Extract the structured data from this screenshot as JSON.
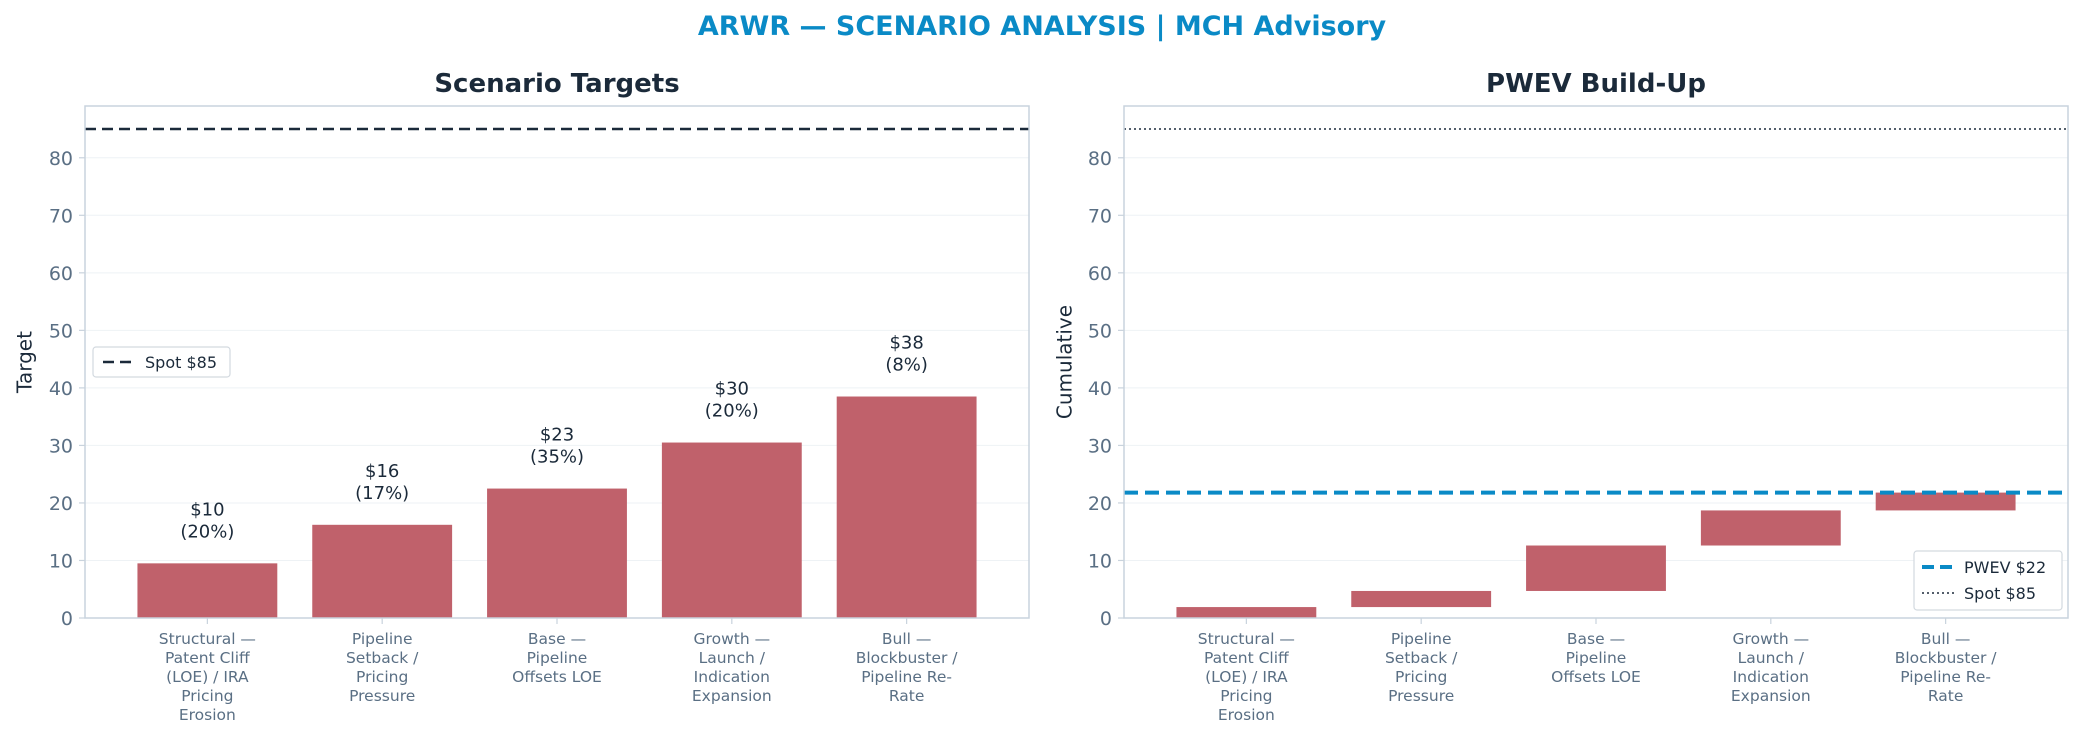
{
  "suptitle": "ARWR — SCENARIO ANALYSIS | MCH Advisory",
  "colors": {
    "title": "#1b2a3a",
    "suptitle": "#0a8ac6",
    "bar": "#c0616b",
    "axis": "#c9d3dd",
    "tick_text": "#5a6f84",
    "grid": "#eef2f5",
    "spot": "#1b2a3a",
    "pwev": "#0a8ac6"
  },
  "chart_data": [
    {
      "type": "bar",
      "title": "Scenario Targets",
      "ylabel": "Target",
      "xlabel": "",
      "ylim": [
        0,
        89
      ],
      "yticks": [
        0,
        10,
        20,
        30,
        40,
        50,
        60,
        70,
        80
      ],
      "grid": true,
      "categories": [
        [
          "Structural —",
          "Patent Cliff",
          "(LOE) / IRA",
          "Pricing",
          "Erosion"
        ],
        [
          "Pipeline",
          "Setback /",
          "Pricing",
          "Pressure"
        ],
        [
          "Base —",
          "Pipeline",
          "Offsets LOE"
        ],
        [
          "Growth —",
          "Launch /",
          "Indication",
          "Expansion"
        ],
        [
          "Bull —",
          "Blockbuster /",
          "Pipeline Re-",
          "Rate"
        ]
      ],
      "values": [
        9.5,
        16.2,
        22.5,
        30.5,
        38.5
      ],
      "bar_labels": [
        [
          "$10",
          "(20%)"
        ],
        [
          "$16",
          "(17%)"
        ],
        [
          "$23",
          "(35%)"
        ],
        [
          "$30",
          "(20%)"
        ],
        [
          "$38",
          "(8%)"
        ]
      ],
      "reference_lines": [
        {
          "y": 85,
          "style": "dashed",
          "label": "Spot $85"
        }
      ],
      "legend": {
        "position": "center-left",
        "entries": [
          "Spot $85"
        ]
      }
    },
    {
      "type": "bar",
      "title": "PWEV Build-Up",
      "ylabel": "Cumulative",
      "xlabel": "",
      "ylim": [
        0,
        89
      ],
      "yticks": [
        0,
        10,
        20,
        30,
        40,
        50,
        60,
        70,
        80
      ],
      "grid": true,
      "categories": [
        [
          "Structural —",
          "Patent Cliff",
          "(LOE) / IRA",
          "Pricing",
          "Erosion"
        ],
        [
          "Pipeline",
          "Setback /",
          "Pricing",
          "Pressure"
        ],
        [
          "Base —",
          "Pipeline",
          "Offsets LOE"
        ],
        [
          "Growth —",
          "Launch /",
          "Indication",
          "Expansion"
        ],
        [
          "Bull —",
          "Blockbuster /",
          "Pipeline Re-",
          "Rate"
        ]
      ],
      "floating_bars": [
        {
          "bottom": 0,
          "top": 1.9
        },
        {
          "bottom": 1.9,
          "top": 4.7
        },
        {
          "bottom": 4.7,
          "top": 12.6
        },
        {
          "bottom": 12.6,
          "top": 18.7
        },
        {
          "bottom": 18.7,
          "top": 21.8
        }
      ],
      "reference_lines": [
        {
          "y": 21.8,
          "style": "dashed",
          "label": "PWEV $22"
        },
        {
          "y": 85,
          "style": "dotted",
          "label": "Spot $85"
        }
      ],
      "legend": {
        "position": "lower-right",
        "entries": [
          "PWEV $22",
          "Spot $85"
        ]
      }
    }
  ]
}
